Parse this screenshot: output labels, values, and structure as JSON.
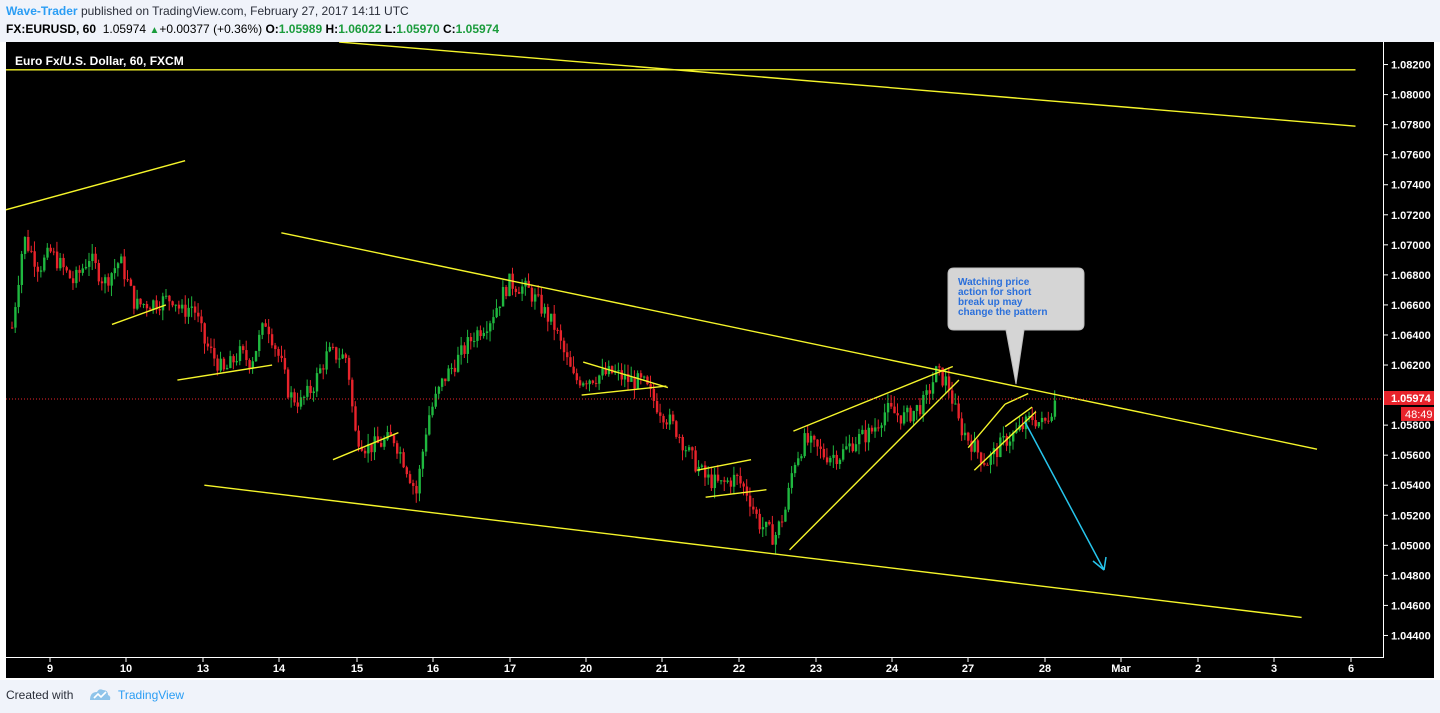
{
  "header": {
    "author": "Wave-Trader",
    "published": "published on TradingView.com, February 27, 2017 14:11 UTC",
    "symbol": "FX:EURUSD, 60",
    "price": "1.05974",
    "change": "+0.00377 (+0.36%)",
    "o_label": "O:",
    "o_value": "1.05989",
    "h_label": "H:",
    "h_value": "1.06022",
    "l_label": "L:",
    "l_value": "1.05970",
    "c_label": "C:",
    "c_value": "1.05974"
  },
  "footer": {
    "created_with": "Created with",
    "brand": "TradingView"
  },
  "colors": {
    "candle_up": "#1fb83f",
    "candle_down": "#e8232b",
    "trendline": "#f5f52a",
    "arrow": "#27c5ec",
    "price_tag": "#e8232b",
    "background": "#000000"
  },
  "chart_data": {
    "type": "candlestick",
    "title": "Euro Fx/U.S. Dollar, 60, FXCM",
    "ylim": [
      1.0425,
      1.0835
    ],
    "y_ticks": [
      "1.08200",
      "1.08000",
      "1.07800",
      "1.07600",
      "1.07400",
      "1.07200",
      "1.07000",
      "1.06800",
      "1.06600",
      "1.06400",
      "1.06200",
      "1.06000",
      "1.05800",
      "1.05600",
      "1.05400",
      "1.05200",
      "1.05000",
      "1.04800",
      "1.04600",
      "1.04400"
    ],
    "x_ticks": [
      "9",
      "10",
      "13",
      "14",
      "15",
      "16",
      "17",
      "20",
      "21",
      "22",
      "23",
      "24",
      "27",
      "28",
      "Mar",
      "2",
      "3",
      "6"
    ],
    "current_price": "1.05974",
    "countdown": "48:49",
    "annotation": "Watching price action for short break up may change the pattern",
    "close_path": [
      [
        0.0,
        1.0645
      ],
      [
        0.15,
        1.0705
      ],
      [
        0.35,
        1.0685
      ],
      [
        0.5,
        1.0695
      ],
      [
        0.8,
        1.0675
      ],
      [
        1.0,
        1.0692
      ],
      [
        1.2,
        1.0675
      ],
      [
        1.4,
        1.069
      ],
      [
        1.6,
        1.066
      ],
      [
        1.9,
        1.0662
      ],
      [
        2.1,
        1.0665
      ],
      [
        2.2,
        1.0655
      ],
      [
        2.35,
        1.066
      ],
      [
        2.5,
        1.0635
      ],
      [
        2.75,
        1.0615
      ],
      [
        2.95,
        1.0628
      ],
      [
        3.1,
        1.0622
      ],
      [
        3.3,
        1.065
      ],
      [
        3.5,
        1.062
      ],
      [
        3.6,
        1.06
      ],
      [
        3.75,
        1.0595
      ],
      [
        3.9,
        1.0605
      ],
      [
        4.1,
        1.0628
      ],
      [
        4.35,
        1.0625
      ],
      [
        4.45,
        1.0575
      ],
      [
        4.6,
        1.0565
      ],
      [
        4.8,
        1.0568
      ],
      [
        4.95,
        1.0572
      ],
      [
        5.1,
        1.0555
      ],
      [
        5.25,
        1.0535
      ],
      [
        5.4,
        1.0585
      ],
      [
        5.6,
        1.061
      ],
      [
        5.8,
        1.0625
      ],
      [
        6.0,
        1.064
      ],
      [
        6.2,
        1.065
      ],
      [
        6.45,
        1.0675
      ],
      [
        6.7,
        1.067
      ],
      [
        6.85,
        1.066
      ],
      [
        7.05,
        1.0645
      ],
      [
        7.15,
        1.063
      ],
      [
        7.3,
        1.061
      ],
      [
        7.55,
        1.0612
      ],
      [
        7.8,
        1.0615
      ],
      [
        8.0,
        1.061
      ],
      [
        8.2,
        1.0608
      ],
      [
        8.35,
        1.0595
      ],
      [
        8.5,
        1.0585
      ],
      [
        8.65,
        1.0575
      ],
      [
        8.8,
        1.056
      ],
      [
        9.0,
        1.0545
      ],
      [
        9.2,
        1.054
      ],
      [
        9.4,
        1.0545
      ],
      [
        9.55,
        1.0535
      ],
      [
        9.7,
        1.0515
      ],
      [
        9.9,
        1.0505
      ],
      [
        10.05,
        1.0525
      ],
      [
        10.15,
        1.0555
      ],
      [
        10.3,
        1.057
      ],
      [
        10.55,
        1.056
      ],
      [
        10.75,
        1.056
      ],
      [
        10.95,
        1.057
      ],
      [
        11.15,
        1.0575
      ],
      [
        11.35,
        1.059
      ],
      [
        11.6,
        1.0585
      ],
      [
        11.85,
        1.0595
      ],
      [
        12.0,
        1.0615
      ],
      [
        12.15,
        1.0608
      ],
      [
        12.3,
        1.058
      ],
      [
        12.5,
        1.0565
      ],
      [
        12.65,
        1.0555
      ],
      [
        12.9,
        1.057
      ],
      [
        13.05,
        1.0575
      ],
      [
        13.25,
        1.0585
      ],
      [
        13.4,
        1.058
      ],
      [
        13.55,
        1.0597
      ]
    ]
  }
}
